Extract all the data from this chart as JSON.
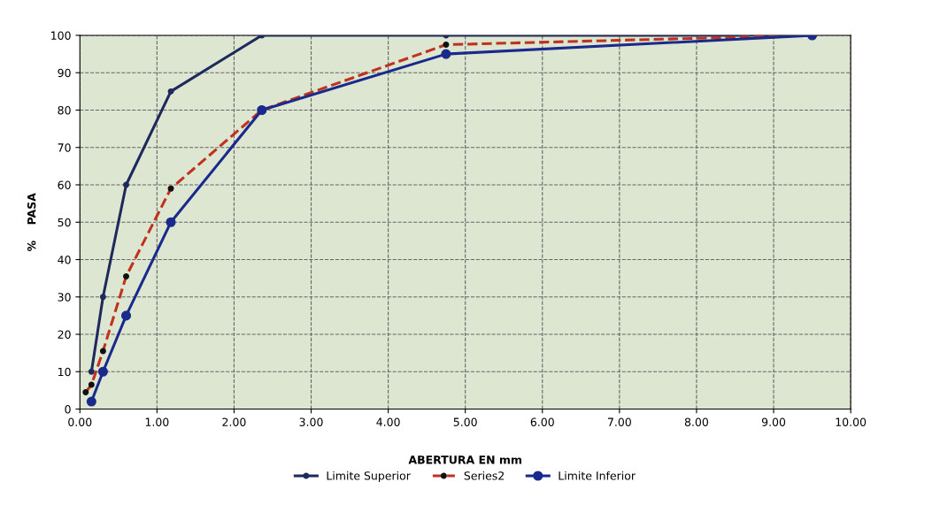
{
  "chart_data": {
    "type": "line",
    "xlabel": "ABERTURA EN mm",
    "ylabel": "%    PASA",
    "xlim": [
      0,
      10
    ],
    "xticks": [
      {
        "value": 0,
        "label": "0.00"
      },
      {
        "value": 1,
        "label": "1.00"
      },
      {
        "value": 2,
        "label": "2.00"
      },
      {
        "value": 3,
        "label": "3.00"
      },
      {
        "value": 4,
        "label": "4.00"
      },
      {
        "value": 5,
        "label": "5.00"
      },
      {
        "value": 6,
        "label": "6.00"
      },
      {
        "value": 7,
        "label": "7.00"
      },
      {
        "value": 8,
        "label": "8.00"
      },
      {
        "value": 9,
        "label": "9.00"
      },
      {
        "value": 10,
        "label": "10.00"
      }
    ],
    "ylim": [
      0,
      100
    ],
    "yticks": [
      0,
      10,
      20,
      30,
      40,
      50,
      60,
      70,
      80,
      90,
      100
    ],
    "grid": true,
    "legend": "bottom",
    "series": [
      {
        "name": "Limite Superior",
        "color": "#1f2a5c",
        "marker": "circle",
        "line_style": "solid",
        "x": [
          0.15,
          0.3,
          0.6,
          1.18,
          2.36,
          4.75,
          9.5
        ],
        "values": [
          10,
          30,
          60,
          85,
          100,
          100,
          100
        ]
      },
      {
        "name": "Series2",
        "color": "#c0311f",
        "marker": "circle",
        "line_style": "dashed",
        "x": [
          0.075,
          0.15,
          0.3,
          0.6,
          1.18,
          2.36,
          4.75,
          9.5
        ],
        "values": [
          4.5,
          6.5,
          15.5,
          35.5,
          59,
          80,
          97.5,
          100
        ]
      },
      {
        "name": "Limite Inferior",
        "color": "#1a2a8c",
        "marker": "circle",
        "line_style": "solid",
        "x": [
          0.15,
          0.3,
          0.6,
          1.18,
          2.36,
          4.75,
          9.5
        ],
        "values": [
          2,
          10,
          25,
          50,
          80,
          95,
          100
        ]
      }
    ]
  }
}
